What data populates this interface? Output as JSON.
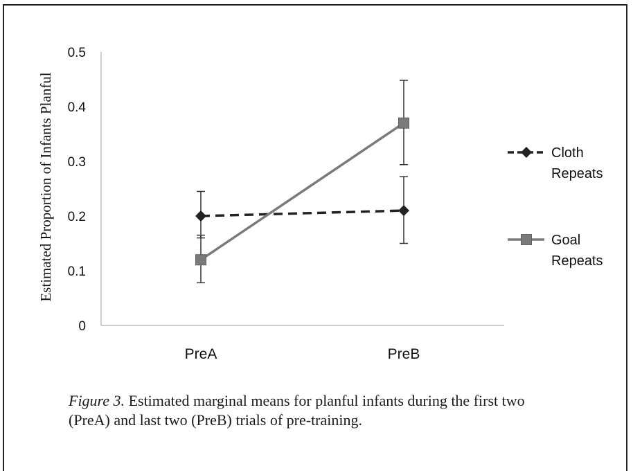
{
  "chart_data": {
    "type": "line",
    "categories": [
      "PreA",
      "PreB"
    ],
    "ylabel": "Estimated Proportion of Infants Planful",
    "xlabel": "",
    "ylim": [
      0,
      0.5
    ],
    "yticks": [
      "0",
      "0.1",
      "0.2",
      "0.3",
      "0.4",
      "0.5"
    ],
    "grid": false,
    "legend_position": "right",
    "series": [
      {
        "name_lines": [
          "Cloth",
          "Repeats"
        ],
        "values": [
          0.2,
          0.21
        ],
        "error_low": [
          0.16,
          0.15
        ],
        "error_high": [
          0.245,
          0.272
        ],
        "style": "dashed",
        "marker": "diamond",
        "color": "#222222"
      },
      {
        "name_lines": [
          "Goal",
          "Repeats"
        ],
        "values": [
          0.12,
          0.37
        ],
        "error_low": [
          0.078,
          0.294
        ],
        "error_high": [
          0.165,
          0.448
        ],
        "style": "solid",
        "marker": "square",
        "color": "#7a7a7a"
      }
    ]
  },
  "caption": {
    "label": "Figure 3.",
    "text": " Estimated marginal means for planful infants during the first two (PreA) and last two (PreB) trials of pre-training."
  }
}
